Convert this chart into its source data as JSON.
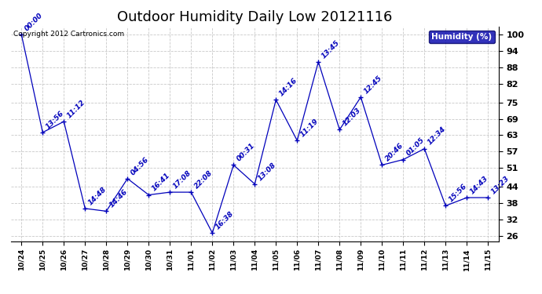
{
  "title": "Outdoor Humidity Daily Low 20121116",
  "copyright": "Copyright 2012 Cartronics.com",
  "legend_label": "Humidity (%)",
  "x_labels": [
    "10/24",
    "10/25",
    "10/26",
    "10/27",
    "10/28",
    "10/29",
    "10/30",
    "10/31",
    "11/01",
    "11/02",
    "11/03",
    "11/04",
    "11/05",
    "11/06",
    "11/07",
    "11/08",
    "11/09",
    "11/10",
    "11/11",
    "11/12",
    "11/13",
    "11/14",
    "11/15"
  ],
  "y_values": [
    100,
    64,
    68,
    36,
    35,
    47,
    41,
    42,
    42,
    27,
    52,
    45,
    76,
    61,
    90,
    65,
    77,
    52,
    54,
    58,
    37,
    40,
    40
  ],
  "point_labels": [
    "00:00",
    "13:56",
    "11:12",
    "14:48",
    "14:46",
    "04:56",
    "16:41",
    "17:08",
    "22:08",
    "16:38",
    "00:31",
    "13:08",
    "14:16",
    "11:19",
    "13:45",
    "12:03",
    "12:45",
    "20:46",
    "01:05",
    "12:34",
    "15:56",
    "14:43",
    "13:23"
  ],
  "line_color": "#0000bb",
  "marker_color": "#0000bb",
  "background_color": "#ffffff",
  "grid_color": "#bbbbbb",
  "y_ticks": [
    26,
    32,
    38,
    44,
    51,
    57,
    63,
    69,
    75,
    82,
    88,
    94,
    100
  ],
  "y_min": 24,
  "y_max": 103,
  "title_fontsize": 13,
  "label_fontsize": 6.5,
  "copyright_fontsize": 6.5,
  "legend_bg": "#0000aa",
  "legend_text_color": "#ffffff"
}
